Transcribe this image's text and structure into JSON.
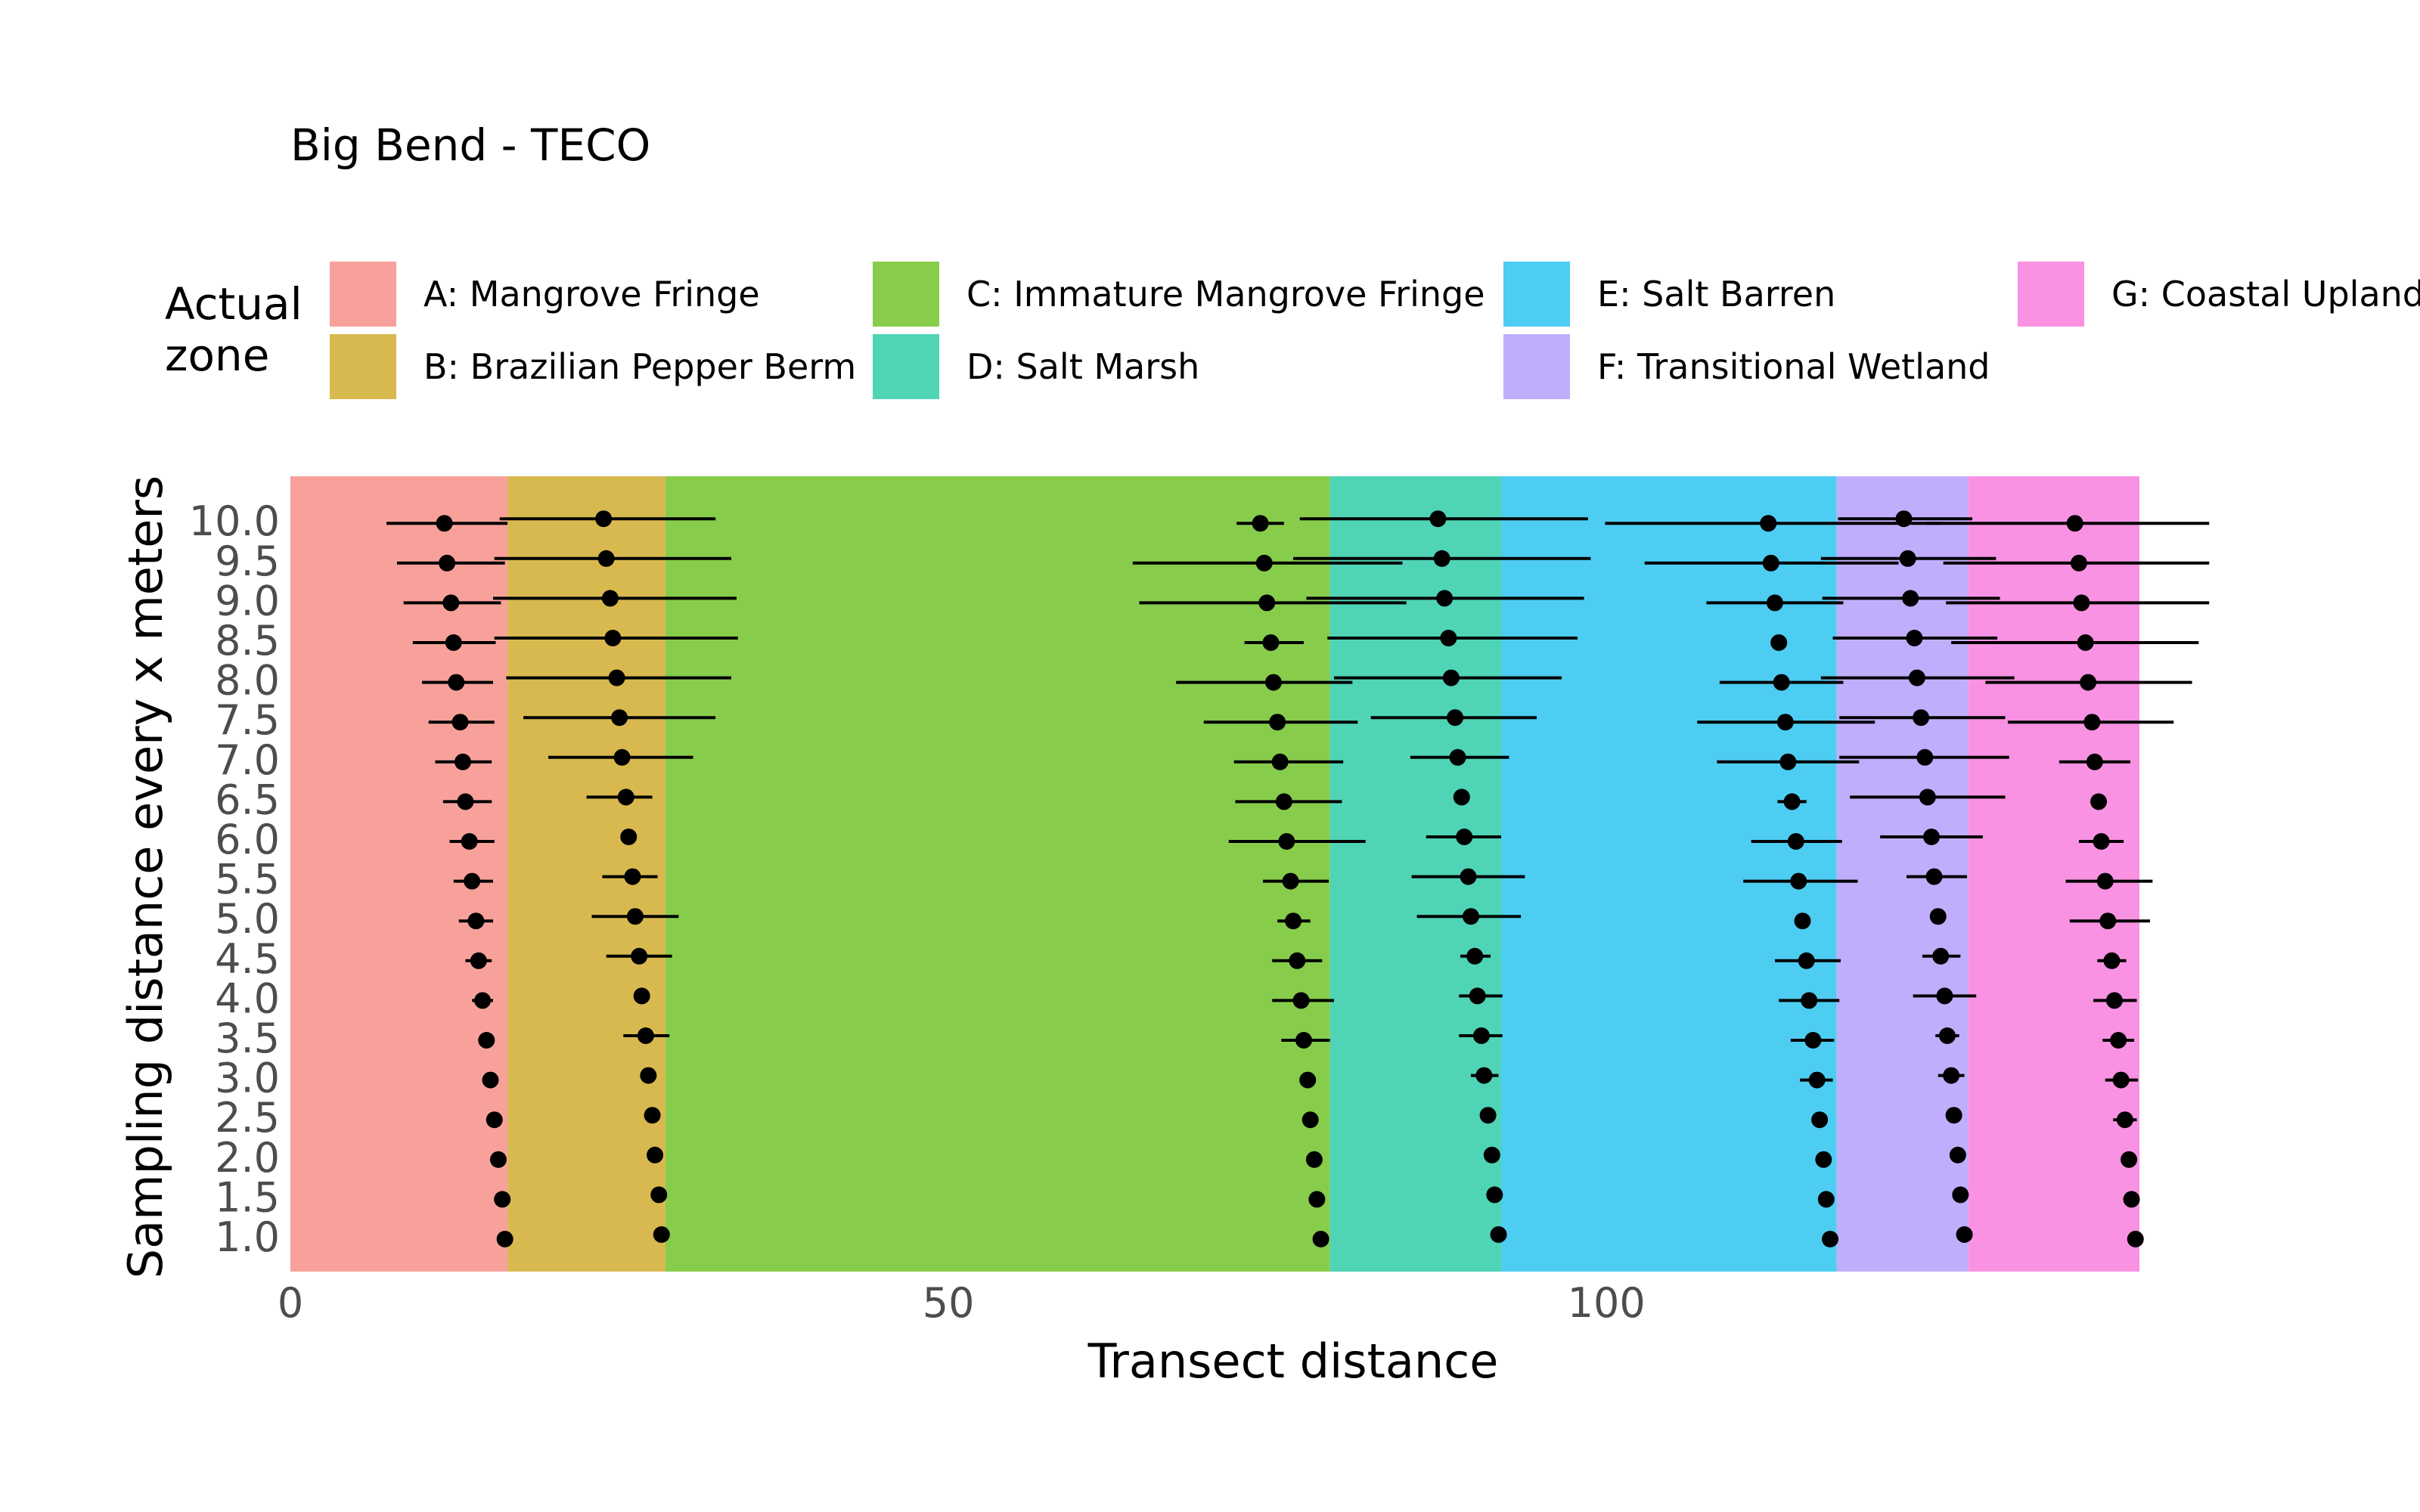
{
  "chart_data": {
    "type": "scatter",
    "title": "Big Bend - TECO",
    "xlabel": "Transect distance",
    "ylabel": "Sampling distance every x meters",
    "xlim": [
      0,
      145.5
    ],
    "x_ticks": [
      0,
      50,
      100
    ],
    "x_tick_labels": [
      "0",
      "50",
      "100"
    ],
    "y_tick_labels": [
      "1.0",
      "1.5",
      "2.0",
      "2.5",
      "3.0",
      "3.5",
      "4.0",
      "4.5",
      "5.0",
      "5.5",
      "6.0",
      "6.5",
      "7.0",
      "7.5",
      "8.0",
      "8.5",
      "9.0",
      "9.5",
      "10.0"
    ],
    "grid": false,
    "legend": {
      "title": "Actual zone",
      "placement": "top",
      "entries": [
        {
          "key": "A",
          "label": "A: Mangrove Fringe",
          "color": "#f8a19b"
        },
        {
          "key": "B",
          "label": "B: Brazilian Pepper Berm",
          "color": "#d8b94f"
        },
        {
          "key": "C",
          "label": "C: Immature Mangrove Fringe",
          "color": "#88cc4c"
        },
        {
          "key": "D",
          "label": "D: Salt Marsh",
          "color": "#4fd4b6"
        },
        {
          "key": "E",
          "label": "E: Salt Barren",
          "color": "#4ecdf2"
        },
        {
          "key": "F",
          "label": "F: Transitional Wetland",
          "color": "#c0aefc"
        },
        {
          "key": "G",
          "label": "G: Coastal Upland",
          "color": "#f992e2"
        }
      ]
    },
    "zones": [
      {
        "key": "A",
        "xmin": 0,
        "xmax": 16.5
      },
      {
        "key": "B",
        "xmin": 16.5,
        "xmax": 28.5
      },
      {
        "key": "C",
        "xmin": 28.5,
        "xmax": 79
      },
      {
        "key": "D",
        "xmin": 79,
        "xmax": 92
      },
      {
        "key": "E",
        "xmin": 92,
        "xmax": 117.5
      },
      {
        "key": "F",
        "xmin": 117.5,
        "xmax": 127.5
      },
      {
        "key": "G",
        "xmin": 127.5,
        "xmax": 140.5
      }
    ],
    "series": [
      {
        "boundary": "A|B",
        "points": [
          [
            1.0,
            16.3,
            null,
            null
          ],
          [
            1.5,
            16.1,
            null,
            null
          ],
          [
            2.0,
            15.8,
            null,
            null
          ],
          [
            2.5,
            15.5,
            null,
            null
          ],
          [
            3.0,
            15.2,
            null,
            null
          ],
          [
            3.5,
            14.9,
            null,
            null
          ],
          [
            4.0,
            14.6,
            13.8,
            15.4
          ],
          [
            4.5,
            14.3,
            13.3,
            15.3
          ],
          [
            5.0,
            14.1,
            12.8,
            15.4
          ],
          [
            5.5,
            13.8,
            12.4,
            15.4
          ],
          [
            6.0,
            13.6,
            12.1,
            15.5
          ],
          [
            6.5,
            13.3,
            11.6,
            15.3
          ],
          [
            7.0,
            13.1,
            11.0,
            15.3
          ],
          [
            7.5,
            12.9,
            10.5,
            15.5
          ],
          [
            8.0,
            12.6,
            10.0,
            15.4
          ],
          [
            8.5,
            12.4,
            9.3,
            15.6
          ],
          [
            9.0,
            12.2,
            8.6,
            16.0
          ],
          [
            9.5,
            11.9,
            8.1,
            16.3
          ],
          [
            10.0,
            11.7,
            7.3,
            16.5
          ]
        ]
      },
      {
        "boundary": "B|C",
        "points": [
          [
            1.0,
            28.2,
            null,
            null
          ],
          [
            1.5,
            28.0,
            null,
            null
          ],
          [
            2.0,
            27.7,
            null,
            null
          ],
          [
            2.5,
            27.5,
            null,
            null
          ],
          [
            3.0,
            27.2,
            null,
            null
          ],
          [
            3.5,
            27.0,
            25.3,
            28.8
          ],
          [
            4.0,
            26.7,
            null,
            null
          ],
          [
            4.5,
            26.5,
            24.0,
            29.0
          ],
          [
            5.0,
            26.2,
            22.9,
            29.5
          ],
          [
            5.5,
            26.0,
            23.7,
            27.9
          ],
          [
            6.0,
            25.7,
            null,
            null
          ],
          [
            6.5,
            25.5,
            22.5,
            27.5
          ],
          [
            7.0,
            25.2,
            19.6,
            30.6
          ],
          [
            7.5,
            25.0,
            17.7,
            32.3
          ],
          [
            8.0,
            24.8,
            16.4,
            33.5
          ],
          [
            8.5,
            24.5,
            15.5,
            34.0
          ],
          [
            9.0,
            24.3,
            15.4,
            33.9
          ],
          [
            9.5,
            24.0,
            15.5,
            33.5
          ],
          [
            10.0,
            23.8,
            15.9,
            32.3
          ]
        ]
      },
      {
        "boundary": "C|D",
        "points": [
          [
            1.0,
            78.3,
            null,
            null
          ],
          [
            1.5,
            78.0,
            null,
            null
          ],
          [
            2.0,
            77.8,
            null,
            null
          ],
          [
            2.5,
            77.5,
            null,
            null
          ],
          [
            3.0,
            77.3,
            null,
            null
          ],
          [
            3.5,
            77.0,
            75.3,
            79.0
          ],
          [
            4.0,
            76.8,
            74.6,
            79.3
          ],
          [
            4.5,
            76.5,
            74.6,
            78.4
          ],
          [
            5.0,
            76.2,
            75.0,
            77.5
          ],
          [
            5.5,
            76.0,
            73.9,
            78.9
          ],
          [
            6.0,
            75.7,
            71.3,
            81.7
          ],
          [
            6.5,
            75.5,
            71.8,
            79.9
          ],
          [
            7.0,
            75.2,
            71.7,
            80.0
          ],
          [
            7.5,
            75.0,
            69.4,
            81.1
          ],
          [
            8.0,
            74.7,
            67.3,
            80.7
          ],
          [
            8.5,
            74.5,
            72.5,
            77.0
          ],
          [
            9.0,
            74.2,
            64.5,
            84.8
          ],
          [
            9.5,
            74.0,
            64.0,
            84.5
          ],
          [
            10.0,
            73.7,
            71.9,
            75.5
          ]
        ]
      },
      {
        "boundary": "D|E",
        "points": [
          [
            1.0,
            91.8,
            null,
            null
          ],
          [
            1.5,
            91.5,
            null,
            null
          ],
          [
            2.0,
            91.3,
            null,
            null
          ],
          [
            2.5,
            91.0,
            null,
            null
          ],
          [
            3.0,
            90.7,
            89.7,
            91.8
          ],
          [
            3.5,
            90.5,
            88.8,
            92.1
          ],
          [
            4.0,
            90.2,
            88.8,
            92.1
          ],
          [
            4.5,
            90.0,
            88.9,
            91.2
          ],
          [
            5.0,
            89.7,
            85.6,
            93.5
          ],
          [
            5.5,
            89.5,
            85.2,
            93.8
          ],
          [
            6.0,
            89.2,
            86.3,
            92.0
          ],
          [
            6.5,
            89.0,
            null,
            null
          ],
          [
            7.0,
            88.7,
            85.1,
            92.6
          ],
          [
            7.5,
            88.5,
            82.1,
            94.7
          ],
          [
            8.0,
            88.2,
            79.3,
            96.6
          ],
          [
            8.5,
            88.0,
            78.8,
            97.8
          ],
          [
            9.0,
            87.7,
            77.2,
            98.3
          ],
          [
            9.5,
            87.5,
            76.2,
            98.8
          ],
          [
            10.0,
            87.2,
            76.7,
            98.6
          ]
        ]
      },
      {
        "boundary": "E|F",
        "points": [
          [
            1.0,
            117.0,
            null,
            null
          ],
          [
            1.5,
            116.7,
            null,
            null
          ],
          [
            2.0,
            116.5,
            null,
            null
          ],
          [
            2.5,
            116.2,
            null,
            null
          ],
          [
            3.0,
            116.0,
            114.7,
            117.2
          ],
          [
            3.5,
            115.7,
            114.0,
            117.3
          ],
          [
            4.0,
            115.4,
            113.1,
            117.7
          ],
          [
            4.5,
            115.2,
            112.8,
            117.8
          ],
          [
            5.0,
            114.9,
            null,
            null
          ],
          [
            5.5,
            114.6,
            110.4,
            119.1
          ],
          [
            6.0,
            114.4,
            111.0,
            117.9
          ],
          [
            6.5,
            114.1,
            113.0,
            115.2
          ],
          [
            7.0,
            113.8,
            108.4,
            119.2
          ],
          [
            7.5,
            113.6,
            106.9,
            120.4
          ],
          [
            8.0,
            113.3,
            108.6,
            118.0
          ],
          [
            8.5,
            113.1,
            null,
            null
          ],
          [
            9.0,
            112.8,
            107.6,
            118.0
          ],
          [
            9.5,
            112.5,
            102.9,
            122.2
          ],
          [
            10.0,
            112.3,
            99.9,
            125.4
          ]
        ]
      },
      {
        "boundary": "F|G",
        "points": [
          [
            1.0,
            127.2,
            null,
            null
          ],
          [
            1.5,
            126.9,
            null,
            null
          ],
          [
            2.0,
            126.7,
            null,
            null
          ],
          [
            2.5,
            126.4,
            null,
            null
          ],
          [
            3.0,
            126.2,
            125.2,
            127.2
          ],
          [
            3.5,
            125.9,
            125.0,
            126.8
          ],
          [
            4.0,
            125.7,
            123.3,
            128.1
          ],
          [
            4.5,
            125.4,
            124.0,
            126.9
          ],
          [
            5.0,
            125.2,
            null,
            null
          ],
          [
            5.5,
            124.9,
            122.8,
            127.4
          ],
          [
            6.0,
            124.7,
            120.8,
            128.6
          ],
          [
            6.5,
            124.4,
            118.5,
            130.3
          ],
          [
            7.0,
            124.2,
            117.7,
            130.6
          ],
          [
            7.5,
            123.9,
            117.7,
            130.3
          ],
          [
            8.0,
            123.6,
            116.3,
            131.0
          ],
          [
            8.5,
            123.4,
            117.2,
            129.7
          ],
          [
            9.0,
            123.1,
            116.4,
            129.9
          ],
          [
            9.5,
            122.9,
            116.3,
            129.6
          ],
          [
            10.0,
            122.6,
            117.6,
            127.8
          ]
        ]
      },
      {
        "boundary": "G|end",
        "points": [
          [
            1.0,
            140.2,
            null,
            null
          ],
          [
            1.5,
            139.9,
            null,
            null
          ],
          [
            2.0,
            139.7,
            null,
            null
          ],
          [
            2.5,
            139.4,
            138.5,
            140.3
          ],
          [
            3.0,
            139.1,
            137.9,
            140.4
          ],
          [
            3.5,
            138.9,
            137.7,
            140.1
          ],
          [
            4.0,
            138.6,
            137.0,
            140.3
          ],
          [
            4.5,
            138.4,
            137.3,
            139.5
          ],
          [
            5.0,
            138.1,
            135.2,
            141.3
          ],
          [
            5.5,
            137.9,
            134.9,
            141.5
          ],
          [
            6.0,
            137.6,
            135.9,
            139.3
          ],
          [
            6.5,
            137.4,
            null,
            null
          ],
          [
            7.0,
            137.1,
            134.4,
            139.8
          ],
          [
            7.5,
            136.9,
            130.5,
            143.1
          ],
          [
            8.0,
            136.6,
            128.8,
            144.5
          ],
          [
            8.5,
            136.4,
            126.2,
            145.0
          ],
          [
            9.0,
            136.1,
            125.8,
            145.8
          ],
          [
            9.5,
            135.9,
            125.6,
            145.8
          ],
          [
            10.0,
            135.6,
            124.3,
            145.8
          ]
        ]
      }
    ]
  }
}
